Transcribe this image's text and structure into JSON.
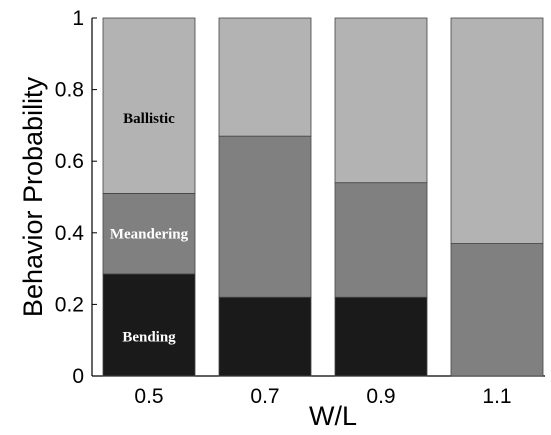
{
  "chart_data": {
    "type": "bar",
    "stacked": true,
    "title": "",
    "xlabel": "W/L",
    "ylabel": "Behavior Probability",
    "ylim": [
      0,
      1
    ],
    "yticks": [
      "0",
      "0.2",
      "0.4",
      "0.6",
      "0.8",
      "1"
    ],
    "categories": [
      "0.5",
      "0.7",
      "0.9",
      "1.1"
    ],
    "series": [
      {
        "name": "Bending",
        "values": [
          0.285,
          0.22,
          0.22,
          0.0
        ],
        "color": "#1a1a1a"
      },
      {
        "name": "Meandering",
        "values": [
          0.225,
          0.45,
          0.32,
          0.37
        ],
        "color": "#808080"
      },
      {
        "name": "Ballistic",
        "values": [
          0.49,
          0.33,
          0.46,
          0.63
        ],
        "color": "#b3b3b3"
      }
    ],
    "grid": false,
    "legend": "none"
  }
}
